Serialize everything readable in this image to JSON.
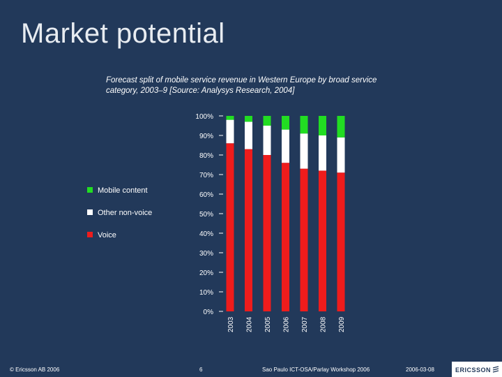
{
  "slide": {
    "title": "Market potential",
    "subtitle": "Forecast split of mobile service revenue in Western Europe by broad service category, 2003–9 [Source: Analysys Research, 2004]"
  },
  "footer": {
    "copyright": "© Ericsson AB 2006",
    "page_number": "6",
    "event": "Sao Paulo ICT-OSA/Parlay Workshop 2006",
    "date": "2006-03-08",
    "logo": "ERICSSON"
  },
  "colors": {
    "background": "#22395a",
    "voice": "#ee1c1c",
    "other": "#ffffff",
    "mobile": "#22dd22",
    "text": "#ffffff"
  },
  "chart_data": {
    "type": "bar",
    "stacked": true,
    "categories": [
      "2003",
      "2004",
      "2005",
      "2006",
      "2007",
      "2008",
      "2009"
    ],
    "series": [
      {
        "name": "Voice",
        "color": "#ee1c1c",
        "values": [
          86,
          83,
          80,
          76,
          73,
          72,
          71
        ]
      },
      {
        "name": "Other non-voice",
        "color": "#ffffff",
        "values": [
          12,
          14,
          15,
          17,
          18,
          18,
          18
        ]
      },
      {
        "name": "Mobile content",
        "color": "#22dd22",
        "values": [
          2,
          3,
          5,
          7,
          9,
          10,
          11
        ]
      }
    ],
    "legend_order": [
      "Mobile content",
      "Other non-voice",
      "Voice"
    ],
    "ylim": [
      0,
      100
    ],
    "yticks": [
      "0%",
      "10%",
      "20%",
      "30%",
      "40%",
      "50%",
      "60%",
      "70%",
      "80%",
      "90%",
      "100%"
    ],
    "legend_position": "left"
  }
}
